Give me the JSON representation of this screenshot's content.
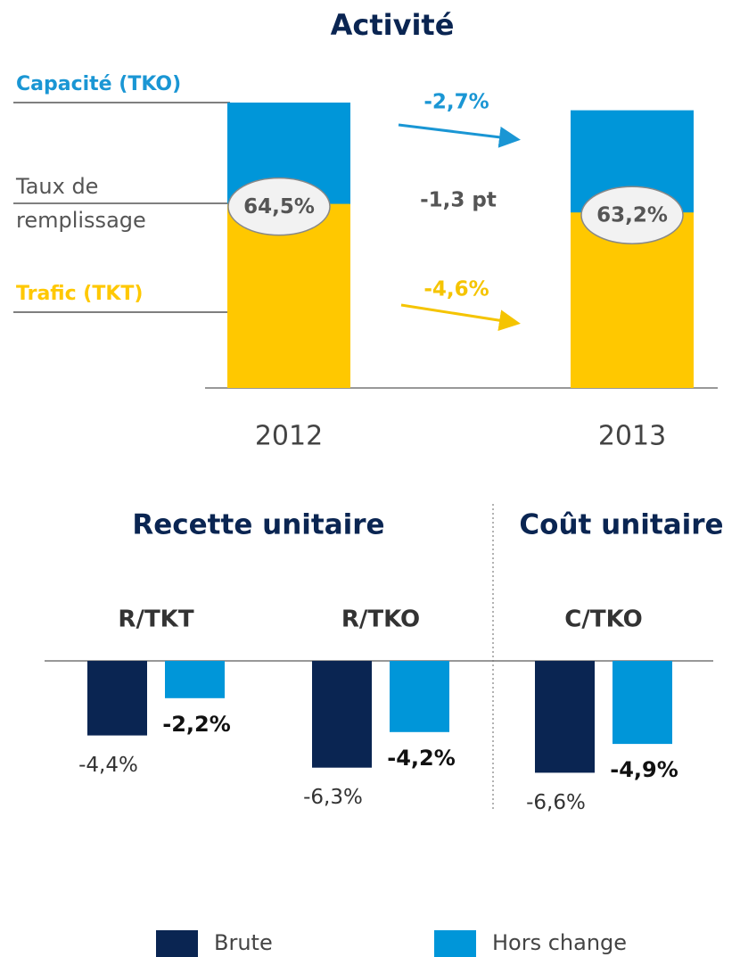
{
  "chart_data": [
    {
      "type": "overlap-bar",
      "title": "Activité",
      "categories": [
        "2012",
        "2013"
      ],
      "series": [
        {
          "name": "Capacité (TKO)",
          "color": "#1a96d4",
          "values": [
            100,
            97.3
          ]
        },
        {
          "name": "Trafic (TKT)",
          "color": "#ffc800",
          "values": [
            64.5,
            61.5
          ]
        }
      ],
      "load_factor": {
        "name": [
          "Taux de",
          "remplissage"
        ],
        "values": [
          64.5,
          63.2
        ],
        "value_labels": [
          "64,5%",
          "63,2%"
        ]
      },
      "annotations": {
        "capacity_change": "-2,7%",
        "load_factor_change": "-1,3 pt",
        "traffic_change": "-4,6%"
      }
    },
    {
      "type": "bar",
      "groups": [
        "Recette unitaire",
        "Coût unitaire"
      ],
      "categories": [
        "R/TKT",
        "R/TKO",
        "C/TKO"
      ],
      "series": [
        {
          "name": "Brute",
          "color": "#0a2552",
          "values": [
            -4.4,
            -6.3,
            -6.6
          ],
          "value_labels": [
            "-4,4%",
            "-6,3%",
            "-6,6%"
          ]
        },
        {
          "name": "Hors change",
          "color": "#0096d9",
          "values": [
            -2.2,
            -4.2,
            -4.9
          ],
          "value_labels": [
            "-2,2%",
            "-4,2%",
            "-4,9%"
          ]
        }
      ]
    }
  ]
}
